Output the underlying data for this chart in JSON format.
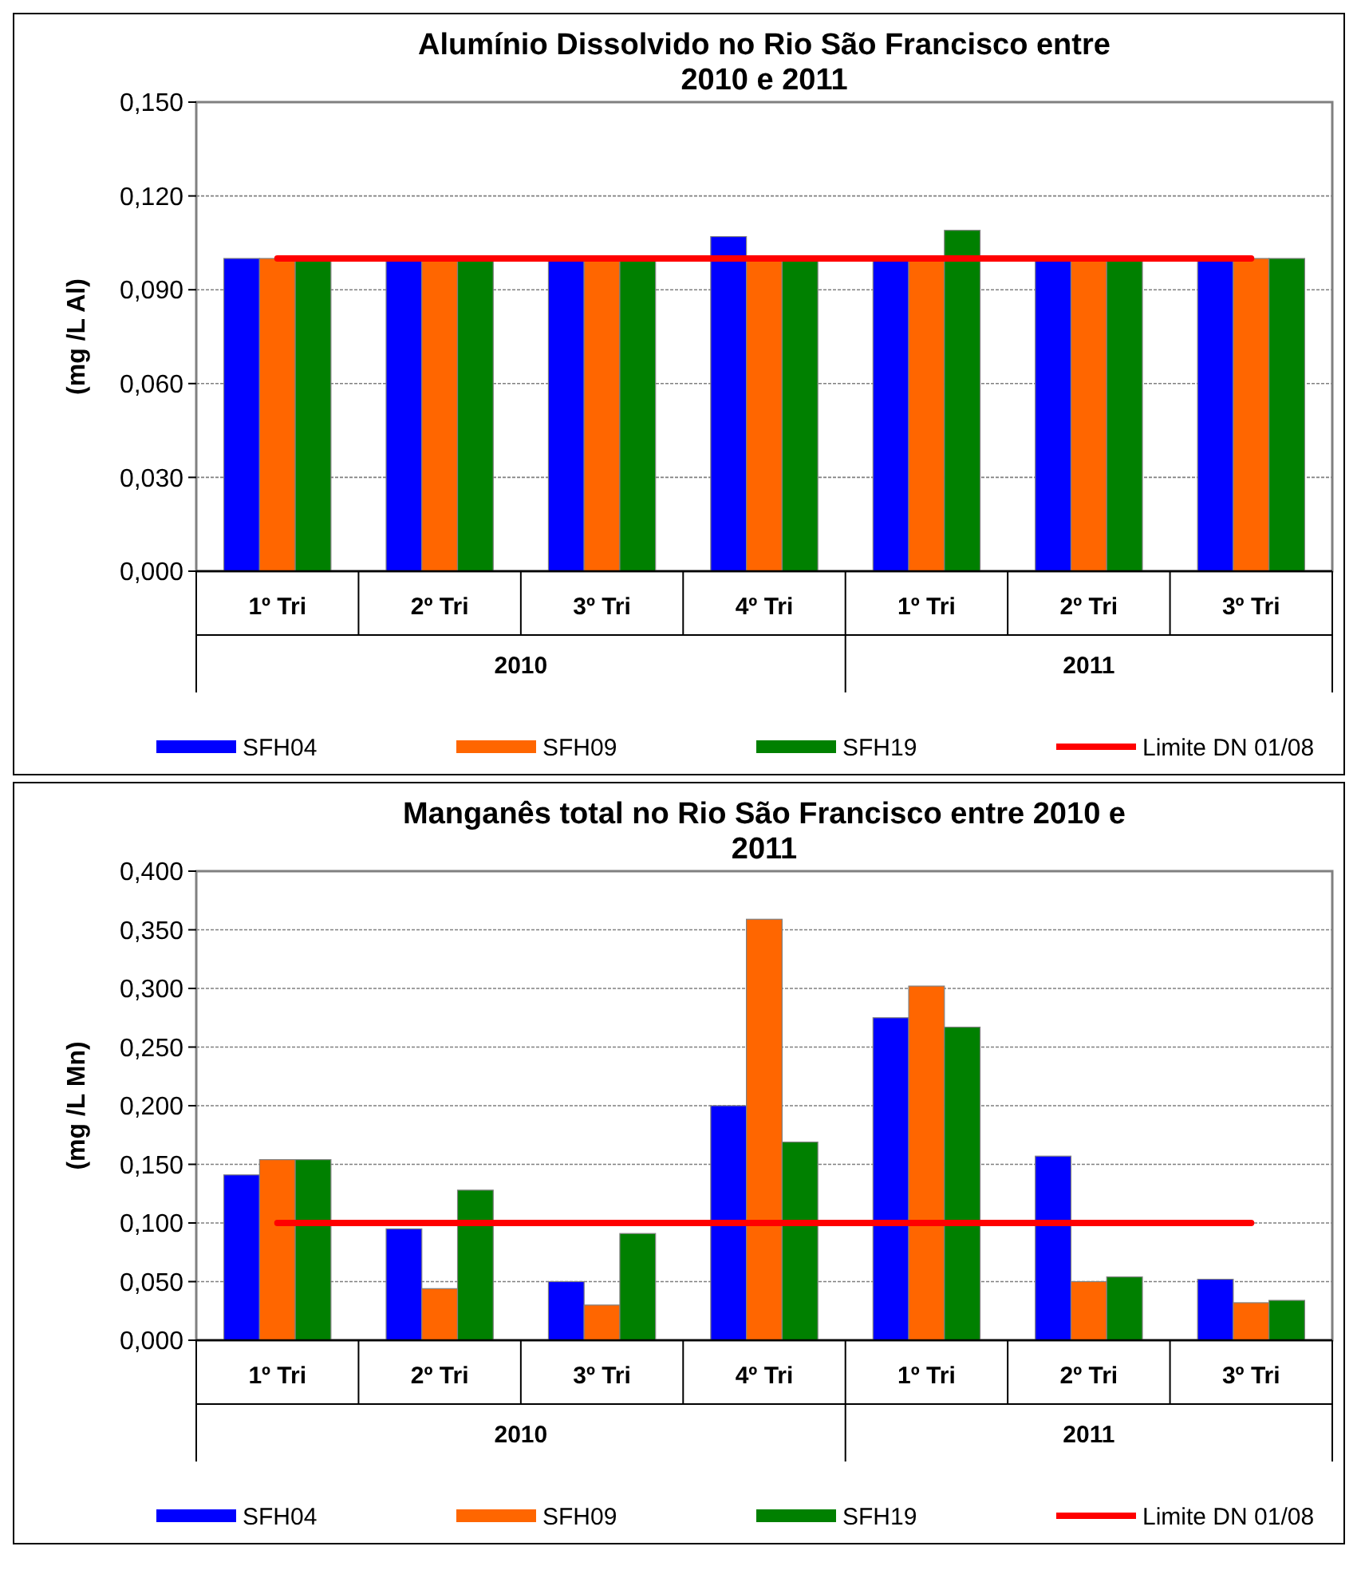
{
  "chart_data": [
    {
      "type": "bar",
      "title": "Alumínio Dissolvido no Rio São Francisco entre 2010 e 2011",
      "ylabel": "(mg /L Al)",
      "categories": [
        "1º Tri",
        "2º Tri",
        "3º Tri",
        "4º Tri",
        "1º Tri",
        "2º Tri",
        "3º Tri"
      ],
      "annotations": [
        "2010",
        "2011"
      ],
      "series": [
        {
          "name": "SFH04",
          "color": "#0000ff",
          "values": [
            0.1,
            0.1,
            0.1,
            0.107,
            0.1,
            0.1,
            0.1
          ]
        },
        {
          "name": "SFH09",
          "color": "#ff6600",
          "values": [
            0.1,
            0.1,
            0.1,
            0.1,
            0.1,
            0.1,
            0.1
          ]
        },
        {
          "name": "SFH19",
          "color": "#008000",
          "values": [
            0.1,
            0.1,
            0.1,
            0.1,
            0.109,
            0.1,
            0.1
          ]
        },
        {
          "name": "Limite DN 01/08",
          "type": "line",
          "color": "#ff0000",
          "values": [
            0.1,
            0.1,
            0.1,
            0.1,
            0.1,
            0.1,
            0.1
          ]
        }
      ],
      "ylim": [
        0,
        0.15
      ],
      "yticks": [
        {
          "value": 0,
          "label": "0,000"
        },
        {
          "value": 0.03,
          "label": "0,030"
        },
        {
          "value": 0.06,
          "label": "0,060"
        },
        {
          "value": 0.09,
          "label": "0,090"
        },
        {
          "value": 0.12,
          "label": "0,120"
        },
        {
          "value": 0.15,
          "label": "0,150"
        }
      ],
      "grid": "y",
      "legend": "bottom"
    },
    {
      "type": "bar",
      "title": "Manganês total no Rio São Francisco entre 2010 e 2011",
      "ylabel": "(mg /L Mn)",
      "categories": [
        "1º Tri",
        "2º Tri",
        "3º Tri",
        "4º Tri",
        "1º Tri",
        "2º Tri",
        "3º Tri"
      ],
      "annotations": [
        "2010",
        "2011"
      ],
      "series": [
        {
          "name": "SFH04",
          "color": "#0000ff",
          "values": [
            0.141,
            0.095,
            0.05,
            0.2,
            0.275,
            0.157,
            0.052
          ]
        },
        {
          "name": "SFH09",
          "color": "#ff6600",
          "values": [
            0.154,
            0.044,
            0.03,
            0.359,
            0.302,
            0.05,
            0.032
          ]
        },
        {
          "name": "SFH19",
          "color": "#008000",
          "values": [
            0.154,
            0.128,
            0.091,
            0.169,
            0.267,
            0.054,
            0.034
          ]
        },
        {
          "name": "Limite DN 01/08",
          "type": "line",
          "color": "#ff0000",
          "values": [
            0.1,
            0.1,
            0.1,
            0.1,
            0.1,
            0.1,
            0.1
          ]
        }
      ],
      "ylim": [
        0,
        0.4
      ],
      "yticks": [
        {
          "value": 0,
          "label": "0,000"
        },
        {
          "value": 0.05,
          "label": "0,050"
        },
        {
          "value": 0.1,
          "label": "0,100"
        },
        {
          "value": 0.15,
          "label": "0,150"
        },
        {
          "value": 0.2,
          "label": "0,200"
        },
        {
          "value": 0.25,
          "label": "0,250"
        },
        {
          "value": 0.3,
          "label": "0,300"
        },
        {
          "value": 0.35,
          "label": "0,350"
        },
        {
          "value": 0.4,
          "label": "0,400"
        }
      ],
      "grid": "y",
      "legend": "bottom"
    }
  ]
}
